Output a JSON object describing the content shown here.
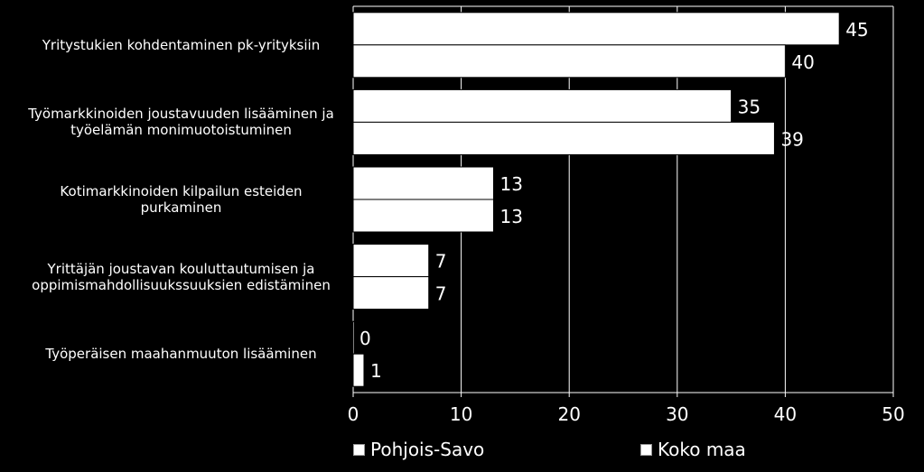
{
  "chart_data": {
    "type": "bar",
    "orientation": "horizontal",
    "categories": [
      "Yritystukien kohdentaminen pk-yrityksiin",
      "Työmarkkinoiden joustavuuden lisääminen ja työelämän monimuotoistuminen",
      "Kotimarkkinoiden kilpailun esteiden purkaminen",
      "Yrittäjän joustavan kouluttautumisen ja oppimismahdollisuukssuuksien edistäminen",
      "Työperäisen maahanmuuton lisääminen"
    ],
    "category_lines": [
      [
        "Yritystukien kohdentaminen pk-yrityksiin"
      ],
      [
        "Työmarkkinoiden joustavuuden lisääminen ja",
        "työelämän monimuotoistuminen"
      ],
      [
        "Kotimarkkinoiden kilpailun esteiden",
        "purkaminen"
      ],
      [
        "Yrittäjän joustavan kouluttautumisen ja",
        "oppimismahdollisuukssuuksien edistäminen"
      ],
      [
        "Työperäisen maahanmuuton lisääminen"
      ]
    ],
    "series": [
      {
        "name": "Pohjois-Savo",
        "values": [
          45,
          35,
          13,
          7,
          0
        ]
      },
      {
        "name": "Koko maa",
        "values": [
          40,
          39,
          13,
          7,
          1
        ]
      }
    ],
    "xlim": [
      0,
      50
    ],
    "xticks": [
      0,
      10,
      20,
      30,
      40,
      50
    ],
    "grid": true,
    "legend_position": "bottom",
    "colors": {
      "background": "#000000",
      "bar_fill": "#ffffff",
      "bar_stroke": "#000000",
      "grid": "#ffffff",
      "text": "#ffffff"
    }
  }
}
